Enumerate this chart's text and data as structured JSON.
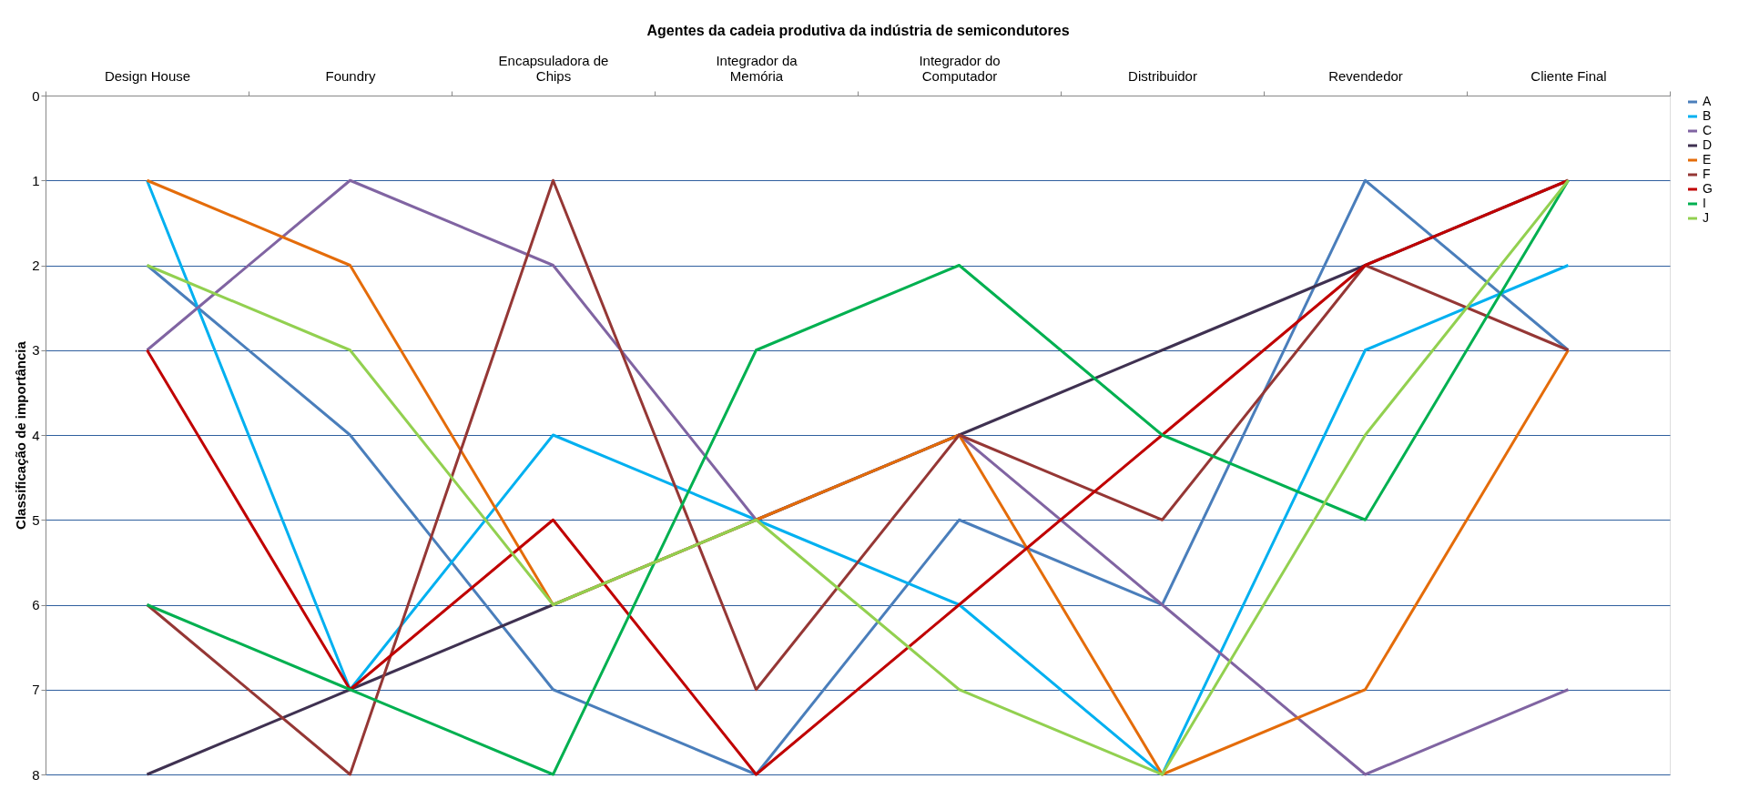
{
  "chart_data": {
    "type": "line",
    "xlabel": "Agentes da cadeia produtiva da indústria de semicondutores",
    "ylabel": "Classificação  de importância",
    "categories": [
      "Design House",
      "Foundry",
      "Encapsuladora de\nChips",
      "Integrador da\nMemória",
      "Integrador do\nComputador",
      "Distribuidor",
      "Revendedor",
      "Cliente Final"
    ],
    "ylim": [
      8,
      0
    ],
    "yticks": [
      0,
      1,
      2,
      3,
      4,
      5,
      6,
      7,
      8
    ],
    "grid": "y",
    "legend": "right",
    "marker": "none",
    "line_style": "solid",
    "series": [
      {
        "name": "A",
        "color": "#4a7ebb",
        "values": [
          2,
          4,
          7,
          8,
          5,
          6,
          1,
          3
        ]
      },
      {
        "name": "B",
        "color": "#00b0f0",
        "values": [
          1,
          7,
          4,
          5,
          6,
          8,
          3,
          2
        ]
      },
      {
        "name": "C",
        "color": "#8064a2",
        "values": [
          3,
          1,
          2,
          5,
          4,
          6,
          8,
          7
        ]
      },
      {
        "name": "D",
        "color": "#3f3151",
        "values": [
          8,
          7,
          6,
          5,
          4,
          3,
          2,
          1
        ]
      },
      {
        "name": "E",
        "color": "#e46c0a",
        "values": [
          1,
          2,
          6,
          5,
          4,
          8,
          7,
          3
        ]
      },
      {
        "name": "F",
        "color": "#953735",
        "values": [
          6,
          8,
          1,
          7,
          4,
          5,
          2,
          3
        ]
      },
      {
        "name": "G",
        "color": "#c00000",
        "values": [
          3,
          7,
          5,
          8,
          6,
          4,
          2,
          1
        ]
      },
      {
        "name": "I",
        "color": "#00b050",
        "values": [
          6,
          7,
          8,
          3,
          2,
          4,
          5,
          1
        ]
      },
      {
        "name": "J",
        "color": "#92d050",
        "values": [
          2,
          3,
          6,
          5,
          7,
          8,
          4,
          1
        ]
      }
    ]
  }
}
